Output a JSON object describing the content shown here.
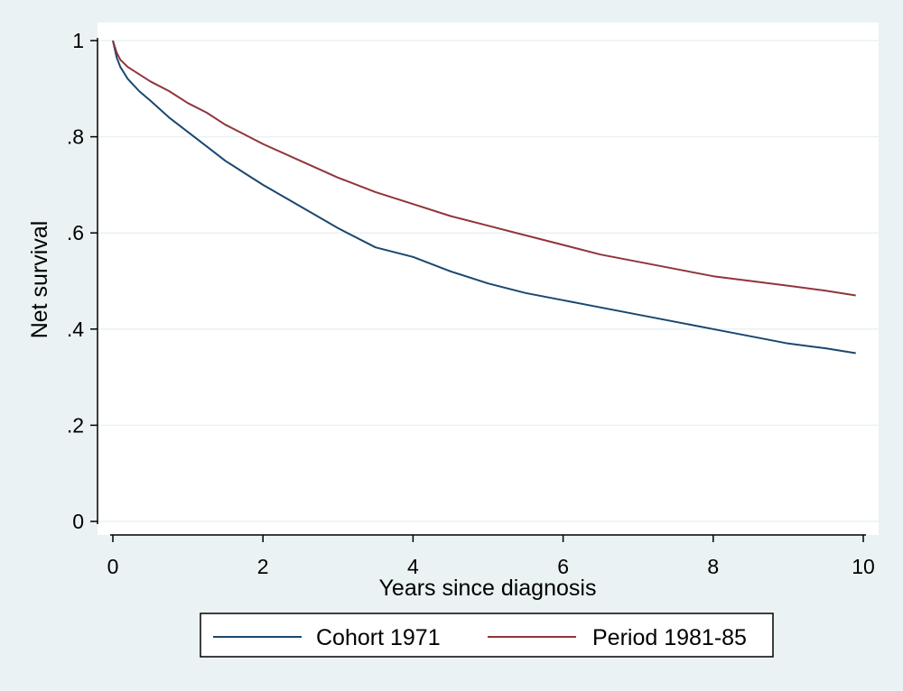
{
  "chart_data": {
    "type": "line",
    "title": "",
    "xlabel": "Years since diagnosis",
    "ylabel": "Net survival",
    "xlim": [
      0,
      10
    ],
    "ylim": [
      0,
      1
    ],
    "x_ticks": [
      0,
      2,
      4,
      6,
      8,
      10
    ],
    "x_tick_labels": [
      "0",
      "2",
      "4",
      "6",
      "8",
      "10"
    ],
    "y_ticks": [
      0,
      0.2,
      0.4,
      0.6,
      0.8,
      1
    ],
    "y_tick_labels": [
      "0",
      ".2",
      ".4",
      ".6",
      ".8",
      "1"
    ],
    "grid": "horizontal",
    "legend_position": "bottom",
    "series": [
      {
        "name": "Cohort 1971",
        "color": "#1a476f",
        "x": [
          0,
          0.05,
          0.1,
          0.2,
          0.35,
          0.5,
          0.75,
          1,
          1.25,
          1.5,
          1.75,
          2,
          2.5,
          3,
          3.5,
          4,
          4.5,
          5,
          5.5,
          6,
          6.5,
          7,
          7.5,
          8,
          8.5,
          9,
          9.5,
          9.9
        ],
        "y": [
          1,
          0.965,
          0.945,
          0.92,
          0.895,
          0.875,
          0.84,
          0.81,
          0.78,
          0.75,
          0.725,
          0.7,
          0.655,
          0.61,
          0.57,
          0.55,
          0.52,
          0.495,
          0.475,
          0.46,
          0.445,
          0.43,
          0.415,
          0.4,
          0.385,
          0.37,
          0.36,
          0.35
        ]
      },
      {
        "name": "Period 1981-85",
        "color": "#90353b",
        "x": [
          0,
          0.05,
          0.1,
          0.2,
          0.35,
          0.5,
          0.75,
          1,
          1.25,
          1.5,
          1.75,
          2,
          2.5,
          3,
          3.5,
          4,
          4.5,
          5,
          5.5,
          6,
          6.5,
          7,
          7.5,
          8,
          8.5,
          9,
          9.5,
          9.9
        ],
        "y": [
          1,
          0.975,
          0.96,
          0.945,
          0.93,
          0.915,
          0.895,
          0.87,
          0.85,
          0.825,
          0.805,
          0.785,
          0.75,
          0.715,
          0.685,
          0.66,
          0.635,
          0.615,
          0.595,
          0.575,
          0.555,
          0.54,
          0.525,
          0.51,
          0.5,
          0.49,
          0.48,
          0.47
        ]
      }
    ]
  }
}
